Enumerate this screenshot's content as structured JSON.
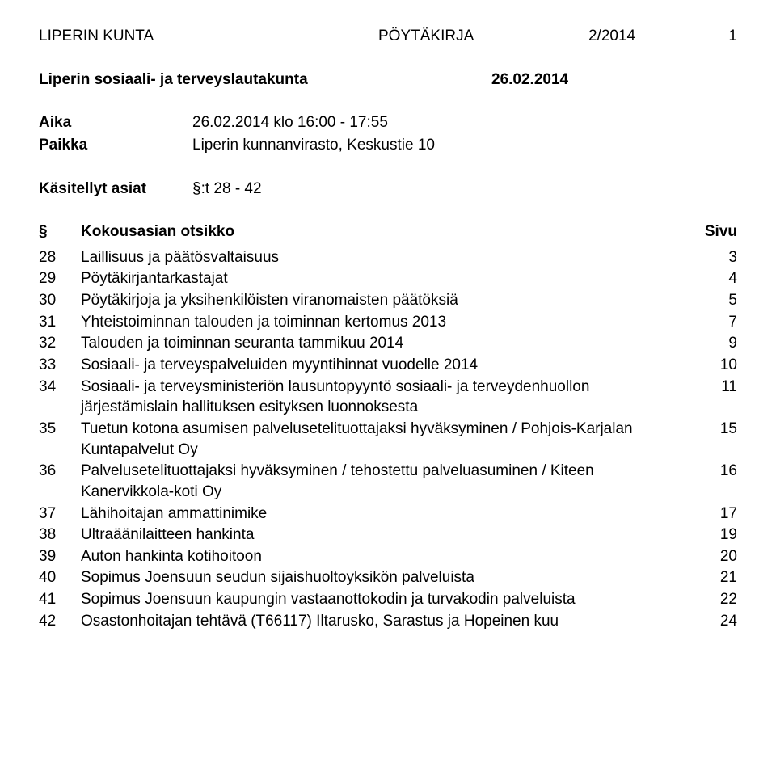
{
  "header": {
    "org": "LIPERIN KUNTA",
    "doc_type": "PÖYTÄKIRJA",
    "ref": "2/2014",
    "page_no": "1"
  },
  "subheader": {
    "committee": "Liperin sosiaali- ja terveyslautakunta",
    "date": "26.02.2014"
  },
  "meta": {
    "aika_label": "Aika",
    "aika_value": "26.02.2014 klo 16:00 - 17:55",
    "paikka_label": "Paikka",
    "paikka_value": "Liperin kunnanvirasto, Keskustie 10",
    "kasitellyt_label": "Käsitellyt asiat",
    "kasitellyt_value": "§:t 28 - 42"
  },
  "toc_header": {
    "section": "§",
    "title": "Kokousasian otsikko",
    "page": "Sivu"
  },
  "items": [
    {
      "num": "28",
      "title": "Laillisuus ja päätösvaltaisuus",
      "page": "3"
    },
    {
      "num": "29",
      "title": "Pöytäkirjantarkastajat",
      "page": "4"
    },
    {
      "num": "30",
      "title": "Pöytäkirjoja ja yksihenkilöisten viranomaisten päätöksiä",
      "page": "5"
    },
    {
      "num": "31",
      "title": "Yhteistoiminnan talouden ja toiminnan kertomus 2013",
      "page": "7"
    },
    {
      "num": "32",
      "title": "Talouden ja toiminnan seuranta tammikuu 2014",
      "page": "9"
    },
    {
      "num": "33",
      "title": "Sosiaali- ja terveyspalveluiden myyntihinnat vuodelle 2014",
      "page": "10"
    },
    {
      "num": "34",
      "title": "Sosiaali- ja terveysministeriön lausuntopyyntö sosiaali- ja terveydenhuollon järjestämislain hallituksen esityksen luonnoksesta",
      "page": "11"
    },
    {
      "num": "35",
      "title": "Tuetun kotona asumisen palvelusetelituottajaksi hyväksyminen / Pohjois-Karjalan Kuntapalvelut Oy",
      "page": "15"
    },
    {
      "num": "36",
      "title": "Palvelusetelituottajaksi hyväksyminen / tehostettu palveluasuminen / Kiteen Kanervikkola-koti Oy",
      "page": "16"
    },
    {
      "num": "37",
      "title": "Lähihoitajan ammattinimike",
      "page": "17"
    },
    {
      "num": "38",
      "title": "Ultraäänilaitteen hankinta",
      "page": "19"
    },
    {
      "num": "39",
      "title": "Auton hankinta kotihoitoon",
      "page": "20"
    },
    {
      "num": "40",
      "title": "Sopimus Joensuun seudun sijaishuoltoyksikön palveluista",
      "page": "21"
    },
    {
      "num": "41",
      "title": "Sopimus Joensuun kaupungin vastaanottokodin ja turvakodin palveluista",
      "page": "22"
    },
    {
      "num": "42",
      "title": "Osastonhoitajan tehtävä (T66117) Iltarusko, Sarastus ja Hopeinen kuu",
      "page": "24"
    }
  ]
}
